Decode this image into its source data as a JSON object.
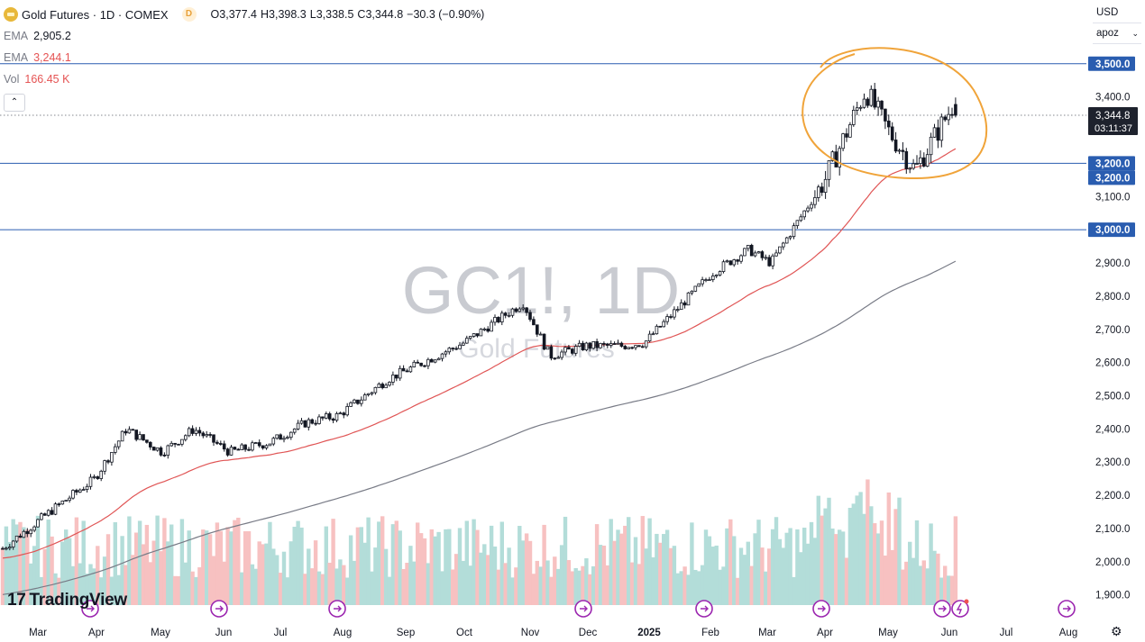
{
  "header": {
    "title": "Gold Futures · 1D · COMEX",
    "badge": "D",
    "open_label": "O",
    "open": "3,377.4",
    "high_label": "H",
    "high": "3,398.3",
    "low_label": "L",
    "low": "3,338.5",
    "close_label": "C",
    "close": "3,344.8",
    "change": "−30.3 (−0.90%)"
  },
  "indicators": [
    {
      "label": "EMA",
      "value": "2,905.2",
      "color": "#131722"
    },
    {
      "label": "EMA",
      "value": "3,244.1",
      "color": "#e55353"
    },
    {
      "label": "Vol",
      "value": "166.45 K",
      "color": "#e55353"
    }
  ],
  "collapse_icon": "chevron-up-icon",
  "currency_btn": "USD",
  "scale_btn": "apoz",
  "watermark": {
    "line1": "GC1!, 1D",
    "line2": "Gold Futures"
  },
  "brand": "TradingView",
  "colors": {
    "up": "#26a69a",
    "down": "#ef5350",
    "ema_short": "#e05555",
    "ema_long": "#787b86",
    "hline": "#2a5db0",
    "annotation": "#f0a43a",
    "vol_up": "#b3ddd9",
    "vol_down": "#f7c1c1"
  },
  "chart_data": {
    "type": "candlestick",
    "price_axis": {
      "ticks": [
        1900,
        2000,
        2100,
        2200,
        2300,
        2400,
        2500,
        2600,
        2700,
        2800,
        2900,
        3000,
        3100,
        3200,
        3300,
        3400,
        3500
      ],
      "tick_labels": [
        "1,900.0",
        "2,000.0",
        "2,100.0",
        "2,200.0",
        "2,300.0",
        "2,400.0",
        "2,500.0",
        "2,600.0",
        "2,700.0",
        "2,800.0",
        "2,900.0",
        "3,000.0",
        "3,100.0",
        "3,200.0",
        "3,300.0",
        "3,400.0",
        "3,500.0"
      ]
    },
    "time_axis": [
      "Mar",
      "Apr",
      "May",
      "Jun",
      "Jul",
      "Aug",
      "Sep",
      "Oct",
      "Nov",
      "Dec",
      "2025",
      "Feb",
      "Mar",
      "Apr",
      "May",
      "Jun",
      "Jul",
      "Aug"
    ],
    "horizontal_lines": [
      {
        "price": 3500,
        "label": "3,500.0"
      },
      {
        "price": 3200,
        "label": "3,200.0"
      },
      {
        "price": 3000,
        "label": "3,000.0"
      }
    ],
    "extra_price_label": "3,200.0",
    "last_price": {
      "price": 3344.8,
      "label": "3,344.8",
      "countdown": "03:11:37"
    },
    "close_path": [
      [
        "Mar 2024",
        2040
      ],
      [
        "Mar mid",
        2160
      ],
      [
        "Apr",
        2250
      ],
      [
        "Apr mid",
        2400
      ],
      [
        "May",
        2330
      ],
      [
        "May mid",
        2400
      ],
      [
        "Jun",
        2330
      ],
      [
        "Jul",
        2360
      ],
      [
        "Jul mid",
        2420
      ],
      [
        "Aug",
        2440
      ],
      [
        "Sep",
        2550
      ],
      [
        "Oct",
        2660
      ],
      [
        "Oct end",
        2780
      ],
      [
        "Nov",
        2620
      ],
      [
        "Nov end",
        2650
      ],
      [
        "Dec",
        2650
      ],
      [
        "2025",
        2660
      ],
      [
        "Feb",
        2870
      ],
      [
        "Feb end",
        2940
      ],
      [
        "Mar",
        2900
      ],
      [
        "Apr",
        3150
      ],
      [
        "Apr mid",
        3420
      ],
      [
        "May",
        3300
      ],
      [
        "May mid",
        3180
      ],
      [
        "Jun",
        3380
      ],
      [
        "last",
        3344.8
      ]
    ],
    "ema_short_last": 3244.1,
    "ema_long_last": 2905.2,
    "volume_last": "166.45 K",
    "event_marker_icon": "arrow-right-circle-icon"
  }
}
